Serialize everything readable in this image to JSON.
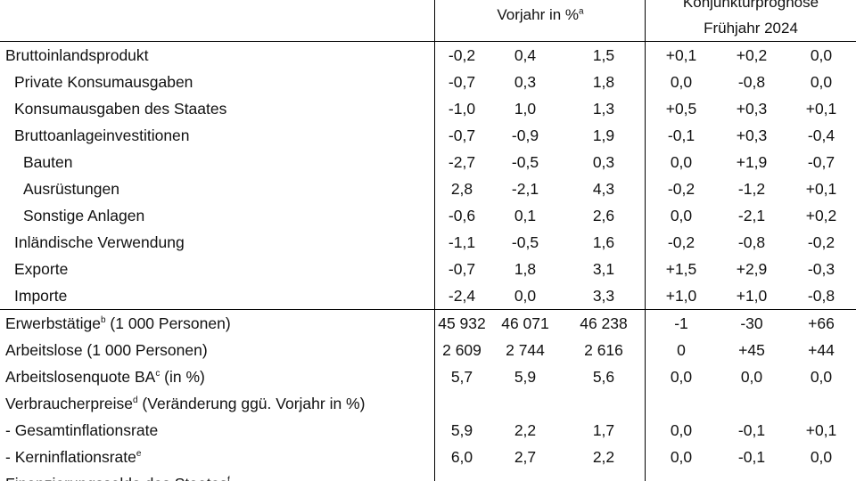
{
  "header": {
    "group1": "Vorjahr in %",
    "group1_note": "a",
    "group2_line1": "Konjunkturprognose",
    "group2_line2": "Frühjahr 2024"
  },
  "rows": [
    {
      "label": "Bruttoinlandsprodukt",
      "v": [
        "-0,2",
        "0,4",
        "1,5"
      ],
      "d": [
        "+0,1",
        "+0,2",
        "0,0"
      ]
    },
    {
      "label": "Private Konsumausgaben",
      "v": [
        "-0,7",
        "0,3",
        "1,8"
      ],
      "d": [
        "0,0",
        "-0,8",
        "0,0"
      ]
    },
    {
      "label": "Konsumausgaben des Staates",
      "v": [
        "-1,0",
        "1,0",
        "1,3"
      ],
      "d": [
        "+0,5",
        "+0,3",
        "+0,1"
      ]
    },
    {
      "label": "Bruttoanlageinvestitionen",
      "v": [
        "-0,7",
        "-0,9",
        "1,9"
      ],
      "d": [
        "-0,1",
        "+0,3",
        "-0,4"
      ]
    },
    {
      "label": "Bauten",
      "v": [
        "-2,7",
        "-0,5",
        "0,3"
      ],
      "d": [
        "0,0",
        "+1,9",
        "-0,7"
      ]
    },
    {
      "label": "Ausrüstungen",
      "v": [
        "2,8",
        "-2,1",
        "4,3"
      ],
      "d": [
        "-0,2",
        "-1,2",
        "+0,1"
      ]
    },
    {
      "label": "Sonstige Anlagen",
      "v": [
        "-0,6",
        "0,1",
        "2,6"
      ],
      "d": [
        "0,0",
        "-2,1",
        "+0,2"
      ]
    },
    {
      "label": "Inländische Verwendung",
      "v": [
        "-1,1",
        "-0,5",
        "1,6"
      ],
      "d": [
        "-0,2",
        "-0,8",
        "-0,2"
      ]
    },
    {
      "label": "Exporte",
      "v": [
        "-0,7",
        "1,8",
        "3,1"
      ],
      "d": [
        "+1,5",
        "+2,9",
        "-0,3"
      ]
    },
    {
      "label": "Importe",
      "v": [
        "-2,4",
        "0,0",
        "3,3"
      ],
      "d": [
        "+1,0",
        "+1,0",
        "-0,8"
      ]
    },
    {
      "label": "Erwerbstätige",
      "sup": "b",
      "label_rest": " (1 000 Personen)",
      "v": [
        "45 932",
        "46 071",
        "46 238"
      ],
      "d": [
        "-1",
        "-30",
        "+66"
      ]
    },
    {
      "label": "Arbeitslose (1 000 Personen)",
      "v": [
        "2 609",
        "2 744",
        "2 616"
      ],
      "d": [
        "0",
        "+45",
        "+44"
      ]
    },
    {
      "label": "Arbeitslosenquote BA",
      "sup": "c",
      "label_rest": " (in %)",
      "v": [
        "5,7",
        "5,9",
        "5,6"
      ],
      "d": [
        "0,0",
        "0,0",
        "0,0"
      ]
    },
    {
      "label": "Verbraucherpreise",
      "sup": "d",
      "label_rest": " (Veränderung ggü. Vorjahr in %)"
    },
    {
      "label": "- Gesamtinflationsrate",
      "v": [
        "5,9",
        "2,2",
        "1,7"
      ],
      "d": [
        "0,0",
        "-0,1",
        "+0,1"
      ]
    },
    {
      "label": "- Kerninflationsrate",
      "sup": "e",
      "v": [
        "6,0",
        "2,7",
        "2,2"
      ],
      "d": [
        "0,0",
        "-0,1",
        "0,0"
      ]
    },
    {
      "label": "Finanzierungssaldo des Staates",
      "sup": "f"
    }
  ]
}
